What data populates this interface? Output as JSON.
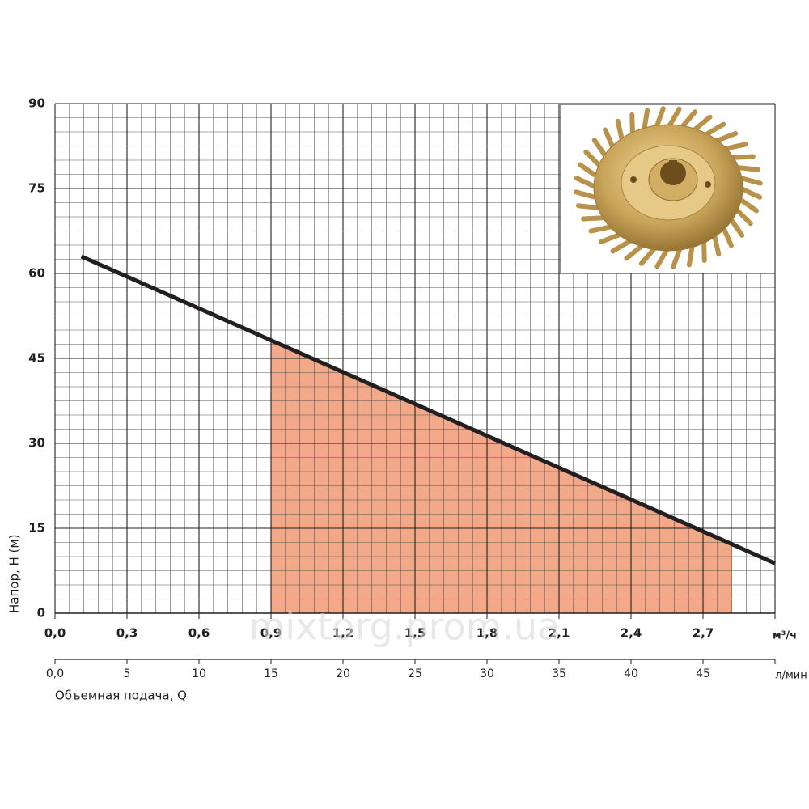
{
  "chart_data": {
    "type": "line",
    "y_label": "Напор, H (м)",
    "x_label": "Объемная подача, Q",
    "x_unit": "м³/ч",
    "x2_unit": "л/мин",
    "watermark": "mixtorg.prom.ua",
    "x": [
      0.11,
      0.9,
      2.82,
      3.0
    ],
    "series": [
      {
        "color": "#231f20",
        "values": [
          63,
          48.2,
          12.2,
          8.8
        ]
      }
    ],
    "highlight": {
      "xlim": [
        0.9,
        2.82
      ],
      "color": "#f2a98a"
    },
    "xlim": [
      0,
      3.0
    ],
    "xticks": [
      {
        "value": 0,
        "label": "0,0"
      },
      {
        "value": 0.3,
        "label": "0,3"
      },
      {
        "value": 0.6,
        "label": "0,6"
      },
      {
        "value": 0.9,
        "label": "0,9"
      },
      {
        "value": 1.2,
        "label": "1,2"
      },
      {
        "value": 1.5,
        "label": "1,5"
      },
      {
        "value": 1.8,
        "label": "1,8"
      },
      {
        "value": 2.1,
        "label": "2,1"
      },
      {
        "value": 2.4,
        "label": "2,4"
      },
      {
        "value": 2.7,
        "label": "2,7"
      }
    ],
    "x2lim": [
      0,
      50
    ],
    "x2ticks": [
      {
        "value": 0,
        "label": "0,0"
      },
      5,
      10,
      15,
      20,
      25,
      30,
      35,
      40,
      45
    ],
    "ylim": [
      0,
      90
    ],
    "yticks": [
      0,
      15,
      30,
      45,
      60,
      75,
      90
    ],
    "grid": true
  }
}
